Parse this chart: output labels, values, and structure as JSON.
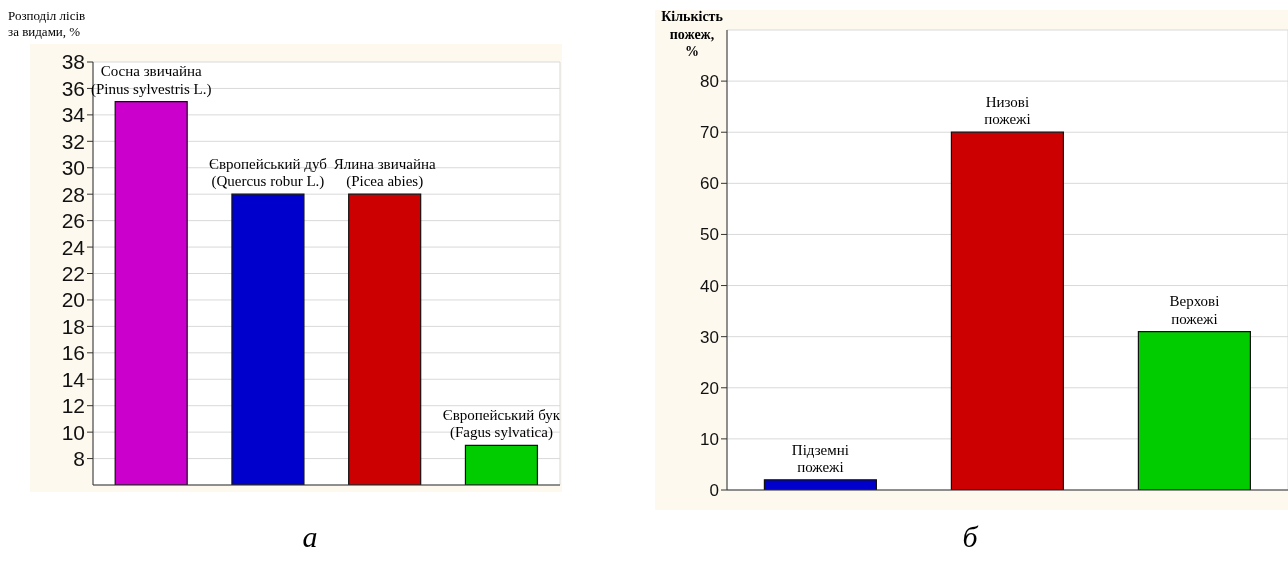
{
  "chart_data": [
    {
      "type": "bar",
      "ylabel": "Розподіл лісів\nза видами, %",
      "categories": [
        "Сосна звичайна\n(Pinus sylvestris L.)",
        "Європейський дуб\n(Quercus robur L.)",
        "Ялина звичайна\n(Picea abies)",
        "Європейський бук\n(Fagus sylvatica)"
      ],
      "values": [
        35,
        28,
        28,
        9
      ],
      "colors": [
        "#cc00cc",
        "#0000cc",
        "#cc0000",
        "#00cc00"
      ],
      "ylim": [
        6,
        38
      ],
      "yticks": [
        8,
        10,
        12,
        14,
        16,
        18,
        20,
        22,
        24,
        26,
        28,
        30,
        32,
        34,
        36,
        38
      ],
      "grid": true,
      "tick_labels": "y",
      "annotations": [
        "а"
      ]
    },
    {
      "type": "bar",
      "ylabel": "Кількість\nпожеж,\n%",
      "categories": [
        "Підземні\nпожежі",
        "Низові\nпожежі",
        "Верхові\nпожежі"
      ],
      "values": [
        2,
        70,
        31
      ],
      "colors": [
        "#0000cc",
        "#cc0000",
        "#00cc00"
      ],
      "ylim": [
        0,
        90
      ],
      "yticks": [
        0,
        10,
        20,
        30,
        40,
        50,
        60,
        70,
        80
      ],
      "grid": true,
      "tick_labels": "y",
      "annotations": [
        "б"
      ]
    }
  ]
}
